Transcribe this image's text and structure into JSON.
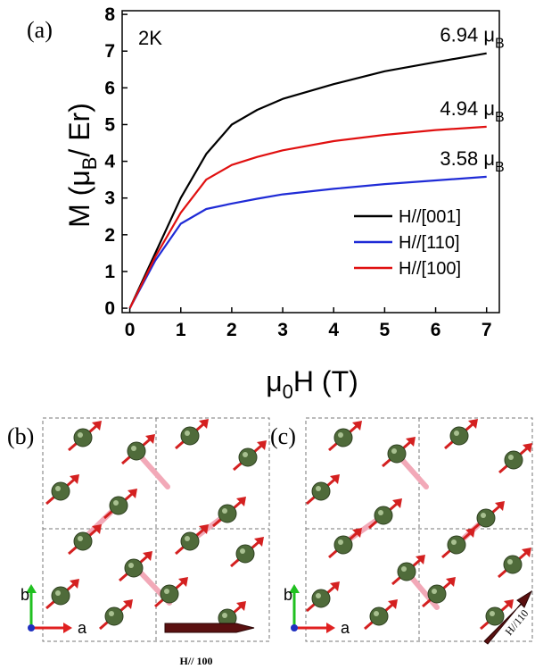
{
  "chart_data": {
    "type": "line",
    "panel_label": "(a)",
    "temperature_label": "2K",
    "xlabel": {
      "text": "μ",
      "sub": "0",
      "rest": "H (T)"
    },
    "ylabel": {
      "text": "M (μ",
      "sub": "B",
      "rest": "/ Er)"
    },
    "x": [
      0,
      0.5,
      1,
      1.5,
      2,
      2.5,
      3,
      4,
      5,
      6,
      7
    ],
    "series": [
      {
        "name": "H//[001]",
        "color": "#000000",
        "values": [
          0,
          1.5,
          3.0,
          4.2,
          5.0,
          5.4,
          5.7,
          6.1,
          6.45,
          6.7,
          6.94
        ]
      },
      {
        "name": "H//[110]",
        "color": "#1f2bd6",
        "values": [
          0,
          1.3,
          2.3,
          2.7,
          2.85,
          2.98,
          3.1,
          3.25,
          3.38,
          3.48,
          3.58
        ]
      },
      {
        "name": "H//[100]",
        "color": "#e01010",
        "values": [
          0,
          1.4,
          2.6,
          3.5,
          3.9,
          4.12,
          4.3,
          4.55,
          4.72,
          4.85,
          4.94
        ]
      }
    ],
    "annotations": [
      {
        "text": "6.94 μ",
        "sub": "B",
        "x": 7,
        "y": 6.94
      },
      {
        "text": "4.94 μ",
        "sub": "B",
        "x": 7,
        "y": 4.94
      },
      {
        "text": "3.58 μ",
        "sub": "B",
        "x": 7,
        "y": 3.58
      }
    ],
    "xlim": [
      -0.15,
      7.25
    ],
    "ylim": [
      -0.12,
      8.1
    ],
    "xticks": [
      0,
      1,
      2,
      3,
      4,
      5,
      6,
      7
    ],
    "yticks": [
      0,
      1,
      2,
      3,
      4,
      5,
      6,
      7,
      8
    ],
    "legend": "lower right"
  },
  "panels": [
    {
      "label": "(b)",
      "axis_b": "b",
      "axis_a": "a",
      "field": "H// 100"
    },
    {
      "label": "(c)",
      "axis_b": "b",
      "axis_a": "a",
      "field": "H//110"
    }
  ]
}
